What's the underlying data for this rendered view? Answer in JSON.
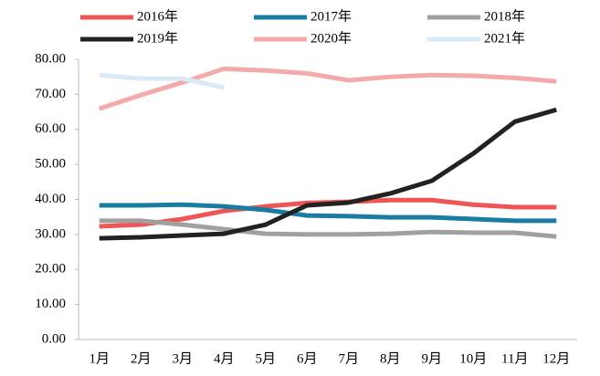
{
  "chart_data": {
    "type": "line",
    "categories": [
      "1月",
      "2月",
      "3月",
      "4月",
      "5月",
      "6月",
      "7月",
      "8月",
      "9月",
      "10月",
      "11月",
      "12月"
    ],
    "series": [
      {
        "name": "2016年",
        "color": "#ef5555",
        "values": [
          32.3,
          32.8,
          34.4,
          36.7,
          38.0,
          39.0,
          39.3,
          39.8,
          39.8,
          38.5,
          37.8,
          37.8
        ]
      },
      {
        "name": "2017年",
        "color": "#1a7ba3",
        "values": [
          38.3,
          38.3,
          38.5,
          38.0,
          37.0,
          35.4,
          35.2,
          34.9,
          34.9,
          34.4,
          33.9,
          33.9
        ]
      },
      {
        "name": "2018年",
        "color": "#a0a0a0",
        "values": [
          33.9,
          33.9,
          32.8,
          31.5,
          30.2,
          30.0,
          30.0,
          30.2,
          30.7,
          30.5,
          30.5,
          29.4
        ]
      },
      {
        "name": "2019年",
        "color": "#222222",
        "values": [
          28.9,
          29.2,
          29.7,
          30.2,
          32.8,
          38.3,
          39.1,
          41.7,
          45.3,
          53.1,
          62.2,
          65.6
        ]
      },
      {
        "name": "2020年",
        "color": "#f4aaaa",
        "values": [
          65.9,
          69.8,
          73.4,
          77.3,
          76.8,
          76.0,
          74.0,
          75.0,
          75.5,
          75.3,
          74.7,
          73.7
        ]
      },
      {
        "name": "2021年",
        "color": "#d9e9f6",
        "values": [
          75.5,
          74.5,
          74.5,
          71.9,
          null,
          null,
          null,
          null,
          null,
          null,
          null,
          null
        ]
      }
    ],
    "ylim": [
      0,
      80
    ],
    "yticks": [
      {
        "value": 0,
        "label": "0.00"
      },
      {
        "value": 10,
        "label": "10.00"
      },
      {
        "value": 20,
        "label": "20.00"
      },
      {
        "value": 30,
        "label": "30.00"
      },
      {
        "value": 40,
        "label": "40.00"
      },
      {
        "value": 50,
        "label": "50.00"
      },
      {
        "value": 60,
        "label": "60.00"
      },
      {
        "value": 70,
        "label": "70.00"
      },
      {
        "value": 80,
        "label": "80.00"
      }
    ],
    "grid": false,
    "legend": "top"
  }
}
